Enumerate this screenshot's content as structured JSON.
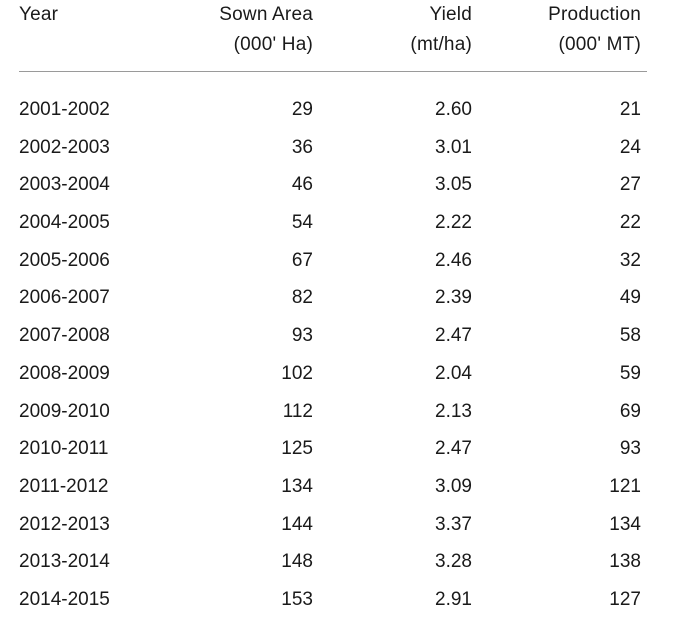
{
  "table": {
    "headers": {
      "year": [
        "Year"
      ],
      "sown_area": [
        "Sown Area",
        "(000' Ha)"
      ],
      "yield": [
        "Yield",
        "(mt/ha)"
      ],
      "production": [
        "Production",
        "(000' MT)"
      ]
    },
    "rows": [
      {
        "year": "2001-2002",
        "sown_area": "29",
        "yield": "2.60",
        "production": "21"
      },
      {
        "year": "2002-2003",
        "sown_area": "36",
        "yield": "3.01",
        "production": "24"
      },
      {
        "year": "2003-2004",
        "sown_area": "46",
        "yield": "3.05",
        "production": "27"
      },
      {
        "year": "2004-2005",
        "sown_area": "54",
        "yield": "2.22",
        "production": "22"
      },
      {
        "year": "2005-2006",
        "sown_area": "67",
        "yield": "2.46",
        "production": "32"
      },
      {
        "year": "2006-2007",
        "sown_area": "82",
        "yield": "2.39",
        "production": "49"
      },
      {
        "year": "2007-2008",
        "sown_area": "93",
        "yield": "2.47",
        "production": "58"
      },
      {
        "year": "2008-2009",
        "sown_area": "102",
        "yield": "2.04",
        "production": "59"
      },
      {
        "year": "2009-2010",
        "sown_area": "112",
        "yield": "2.13",
        "production": "69"
      },
      {
        "year": "2010-2011",
        "sown_area": "125",
        "yield": "2.47",
        "production": "93"
      },
      {
        "year": "2011-2012",
        "sown_area": "134",
        "yield": "3.09",
        "production": "121"
      },
      {
        "year": "2012-2013",
        "sown_area": "144",
        "yield": "3.37",
        "production": "134"
      },
      {
        "year": "2013-2014",
        "sown_area": "148",
        "yield": "3.28",
        "production": "138"
      },
      {
        "year": "2014-2015",
        "sown_area": "153",
        "yield": "2.91",
        "production": "127"
      }
    ]
  }
}
